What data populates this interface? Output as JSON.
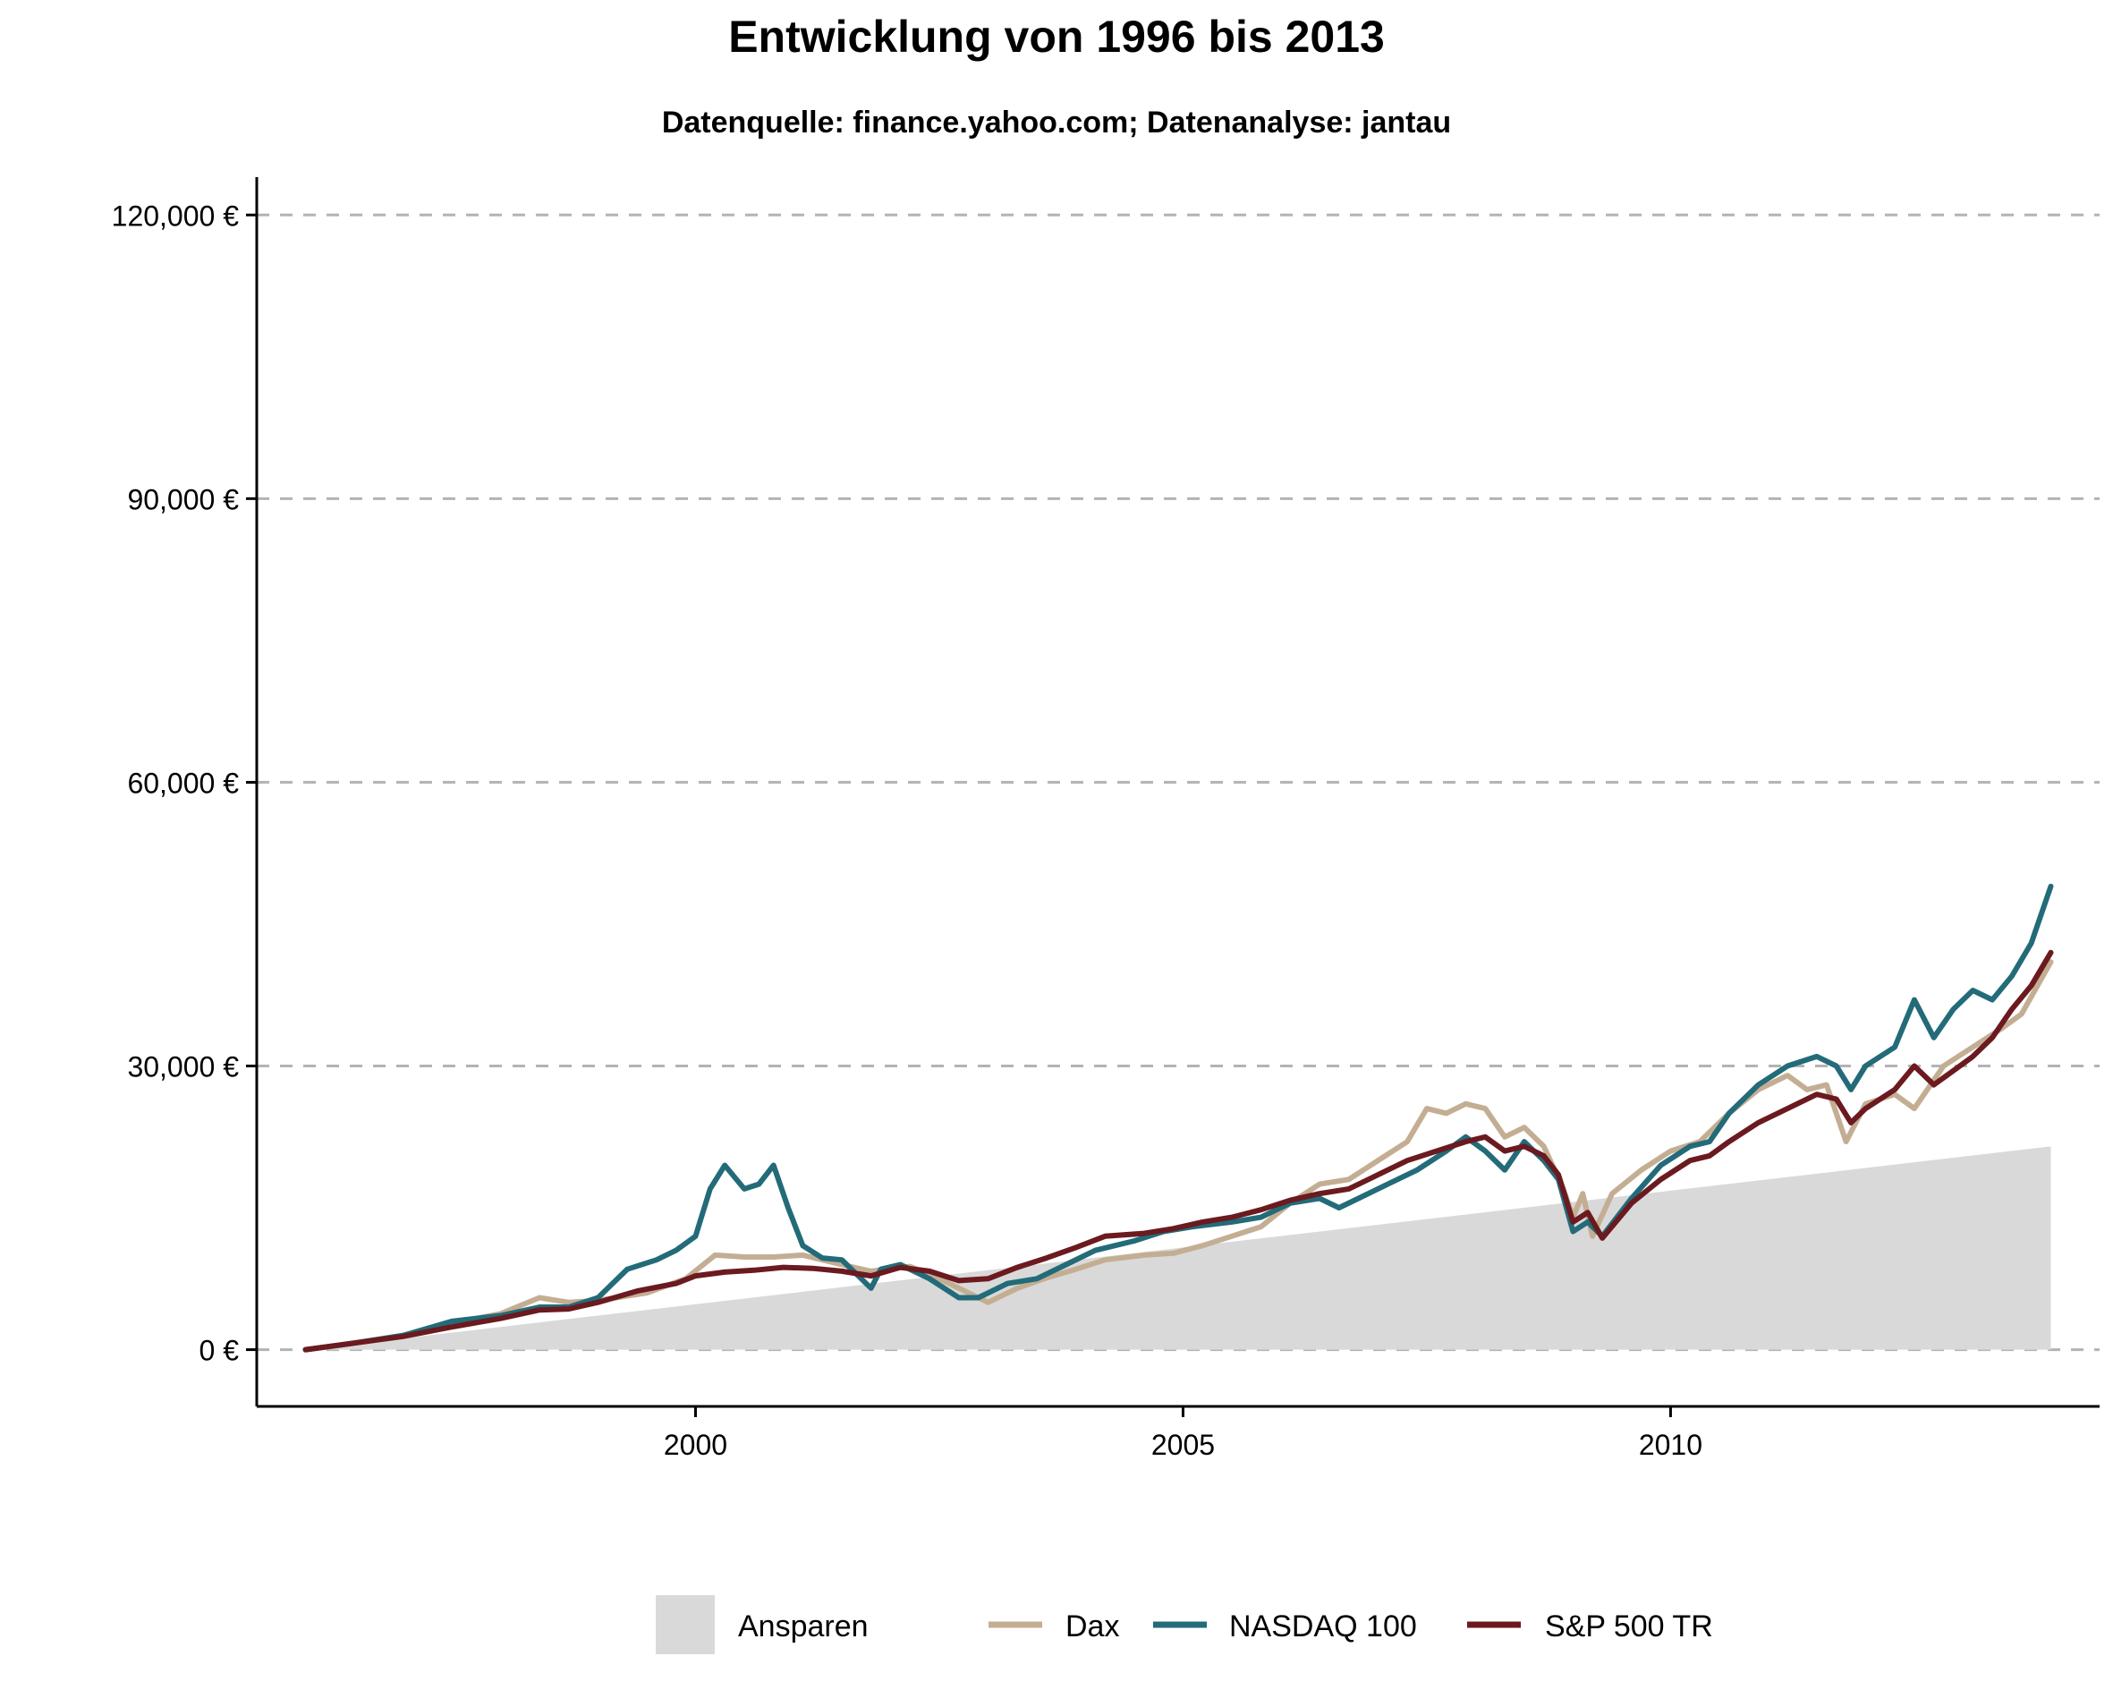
{
  "chart_data": {
    "type": "line",
    "title": "Entwicklung von 1996 bis 2013",
    "subtitle": "Datenquelle: finance.yahoo.com; Datenanalyse: jantau",
    "xlabel": "",
    "ylabel": "",
    "xlim": [
      1995.5,
      2014.4
    ],
    "ylim": [
      -6000,
      124000
    ],
    "x_ticks": [
      2000,
      2005,
      2010
    ],
    "x_tick_labels": [
      "2000",
      "2005",
      "2010"
    ],
    "y_ticks": [
      0,
      30000,
      60000,
      90000,
      120000
    ],
    "y_tick_labels": [
      "0 €",
      "30,000 €",
      "60,000 €",
      "90,000 €",
      "120,000 €"
    ],
    "grid": "horizontal-dashed",
    "legend_position": "bottom",
    "area": {
      "name": "Ansparen",
      "color": "#d9d9d9",
      "x": [
        1996.0,
        2013.9
      ],
      "y": [
        0,
        21500
      ]
    },
    "series": [
      {
        "name": "Dax",
        "color": "#c4ae93",
        "x": [
          1996.0,
          1996.5,
          1997.0,
          1997.5,
          1998.0,
          1998.4,
          1998.7,
          1999.0,
          1999.5,
          1999.9,
          2000.2,
          2000.5,
          2000.8,
          2001.1,
          2001.5,
          2001.8,
          2002.2,
          2002.5,
          2002.8,
          2003.0,
          2003.3,
          2003.6,
          2003.9,
          2004.2,
          2004.6,
          2004.9,
          2005.2,
          2005.5,
          2005.8,
          2006.1,
          2006.4,
          2006.7,
          2007.0,
          2007.3,
          2007.5,
          2007.7,
          2007.9,
          2008.1,
          2008.3,
          2008.5,
          2008.7,
          2008.9,
          2009.0,
          2009.1,
          2009.2,
          2009.4,
          2009.7,
          2010.0,
          2010.3,
          2010.6,
          2010.9,
          2011.2,
          2011.4,
          2011.6,
          2011.8,
          2012.0,
          2012.3,
          2012.5,
          2012.8,
          2013.1,
          2013.4,
          2013.6,
          2013.9
        ],
        "y": [
          0,
          700,
          1500,
          2800,
          3800,
          5500,
          5000,
          5200,
          6000,
          7500,
          10000,
          9800,
          9800,
          10000,
          9000,
          8300,
          8800,
          7500,
          6000,
          5000,
          6500,
          7600,
          8500,
          9500,
          10000,
          10200,
          11000,
          12000,
          13000,
          15500,
          17500,
          18000,
          20000,
          22000,
          25500,
          25000,
          26000,
          25500,
          22500,
          23500,
          21500,
          17000,
          14000,
          16500,
          12000,
          16500,
          19000,
          21000,
          22000,
          25000,
          27500,
          29000,
          27500,
          28000,
          22000,
          26000,
          27000,
          25500,
          30000,
          32000,
          34000,
          35500,
          41000
        ]
      },
      {
        "name": "NASDAQ 100",
        "color": "#236b79",
        "x": [
          1996.0,
          1996.5,
          1997.0,
          1997.5,
          1998.0,
          1998.4,
          1998.7,
          1999.0,
          1999.3,
          1999.6,
          1999.8,
          2000.0,
          2000.15,
          2000.3,
          2000.5,
          2000.65,
          2000.8,
          2000.95,
          2001.1,
          2001.3,
          2001.5,
          2001.8,
          2001.9,
          2002.1,
          2002.4,
          2002.7,
          2002.9,
          2003.2,
          2003.5,
          2003.8,
          2004.1,
          2004.5,
          2004.8,
          2005.1,
          2005.5,
          2005.8,
          2006.1,
          2006.4,
          2006.6,
          2006.8,
          2007.1,
          2007.4,
          2007.7,
          2007.9,
          2008.1,
          2008.3,
          2008.5,
          2008.7,
          2008.85,
          2009.0,
          2009.15,
          2009.3,
          2009.6,
          2009.9,
          2010.2,
          2010.4,
          2010.6,
          2010.9,
          2011.2,
          2011.5,
          2011.7,
          2011.85,
          2012.0,
          2012.3,
          2012.5,
          2012.7,
          2012.9,
          2013.1,
          2013.3,
          2013.5,
          2013.7,
          2013.9
        ],
        "y": [
          0,
          700,
          1500,
          3000,
          3600,
          4500,
          4500,
          5500,
          8500,
          9500,
          10500,
          12000,
          17000,
          19500,
          17000,
          17500,
          19500,
          15000,
          11000,
          9700,
          9500,
          6500,
          8500,
          9000,
          7500,
          5500,
          5500,
          7000,
          7500,
          9000,
          10500,
          11500,
          12500,
          13000,
          13500,
          14000,
          15500,
          16000,
          15000,
          16000,
          17500,
          19000,
          21000,
          22500,
          21000,
          19000,
          22000,
          20000,
          18000,
          12500,
          13500,
          12000,
          16000,
          19500,
          21500,
          22000,
          25000,
          28000,
          30000,
          31000,
          30000,
          27500,
          30000,
          32000,
          37000,
          33000,
          36000,
          38000,
          37000,
          39500,
          43000,
          49000
        ]
      },
      {
        "name": "S&P 500 TR",
        "color": "#6b1a1f",
        "x": [
          1996.0,
          1996.5,
          1997.0,
          1997.5,
          1998.0,
          1998.4,
          1998.7,
          1999.0,
          1999.4,
          1999.8,
          2000.0,
          2000.3,
          2000.6,
          2000.9,
          2001.2,
          2001.5,
          2001.8,
          2002.1,
          2002.4,
          2002.7,
          2003.0,
          2003.3,
          2003.6,
          2003.9,
          2004.2,
          2004.6,
          2004.9,
          2005.2,
          2005.5,
          2005.8,
          2006.1,
          2006.4,
          2006.7,
          2007.0,
          2007.3,
          2007.6,
          2007.9,
          2008.1,
          2008.3,
          2008.5,
          2008.7,
          2008.85,
          2009.0,
          2009.15,
          2009.3,
          2009.6,
          2009.9,
          2010.2,
          2010.4,
          2010.6,
          2010.9,
          2011.2,
          2011.5,
          2011.7,
          2011.85,
          2012.0,
          2012.3,
          2012.5,
          2012.7,
          2012.9,
          2013.1,
          2013.3,
          2013.5,
          2013.7,
          2013.9
        ],
        "y": [
          0,
          700,
          1400,
          2400,
          3300,
          4200,
          4300,
          5000,
          6200,
          7000,
          7800,
          8200,
          8400,
          8700,
          8600,
          8300,
          7800,
          8700,
          8300,
          7300,
          7500,
          8700,
          9700,
          10800,
          12000,
          12300,
          12800,
          13500,
          14000,
          14800,
          15800,
          16500,
          17000,
          18500,
          20000,
          21000,
          22000,
          22500,
          21000,
          21500,
          20500,
          18500,
          13500,
          14500,
          11800,
          15500,
          18000,
          20000,
          20500,
          22000,
          24000,
          25500,
          27000,
          26500,
          24000,
          25500,
          27500,
          30000,
          28000,
          29500,
          31000,
          33000,
          36000,
          38500,
          42000
        ]
      }
    ]
  }
}
